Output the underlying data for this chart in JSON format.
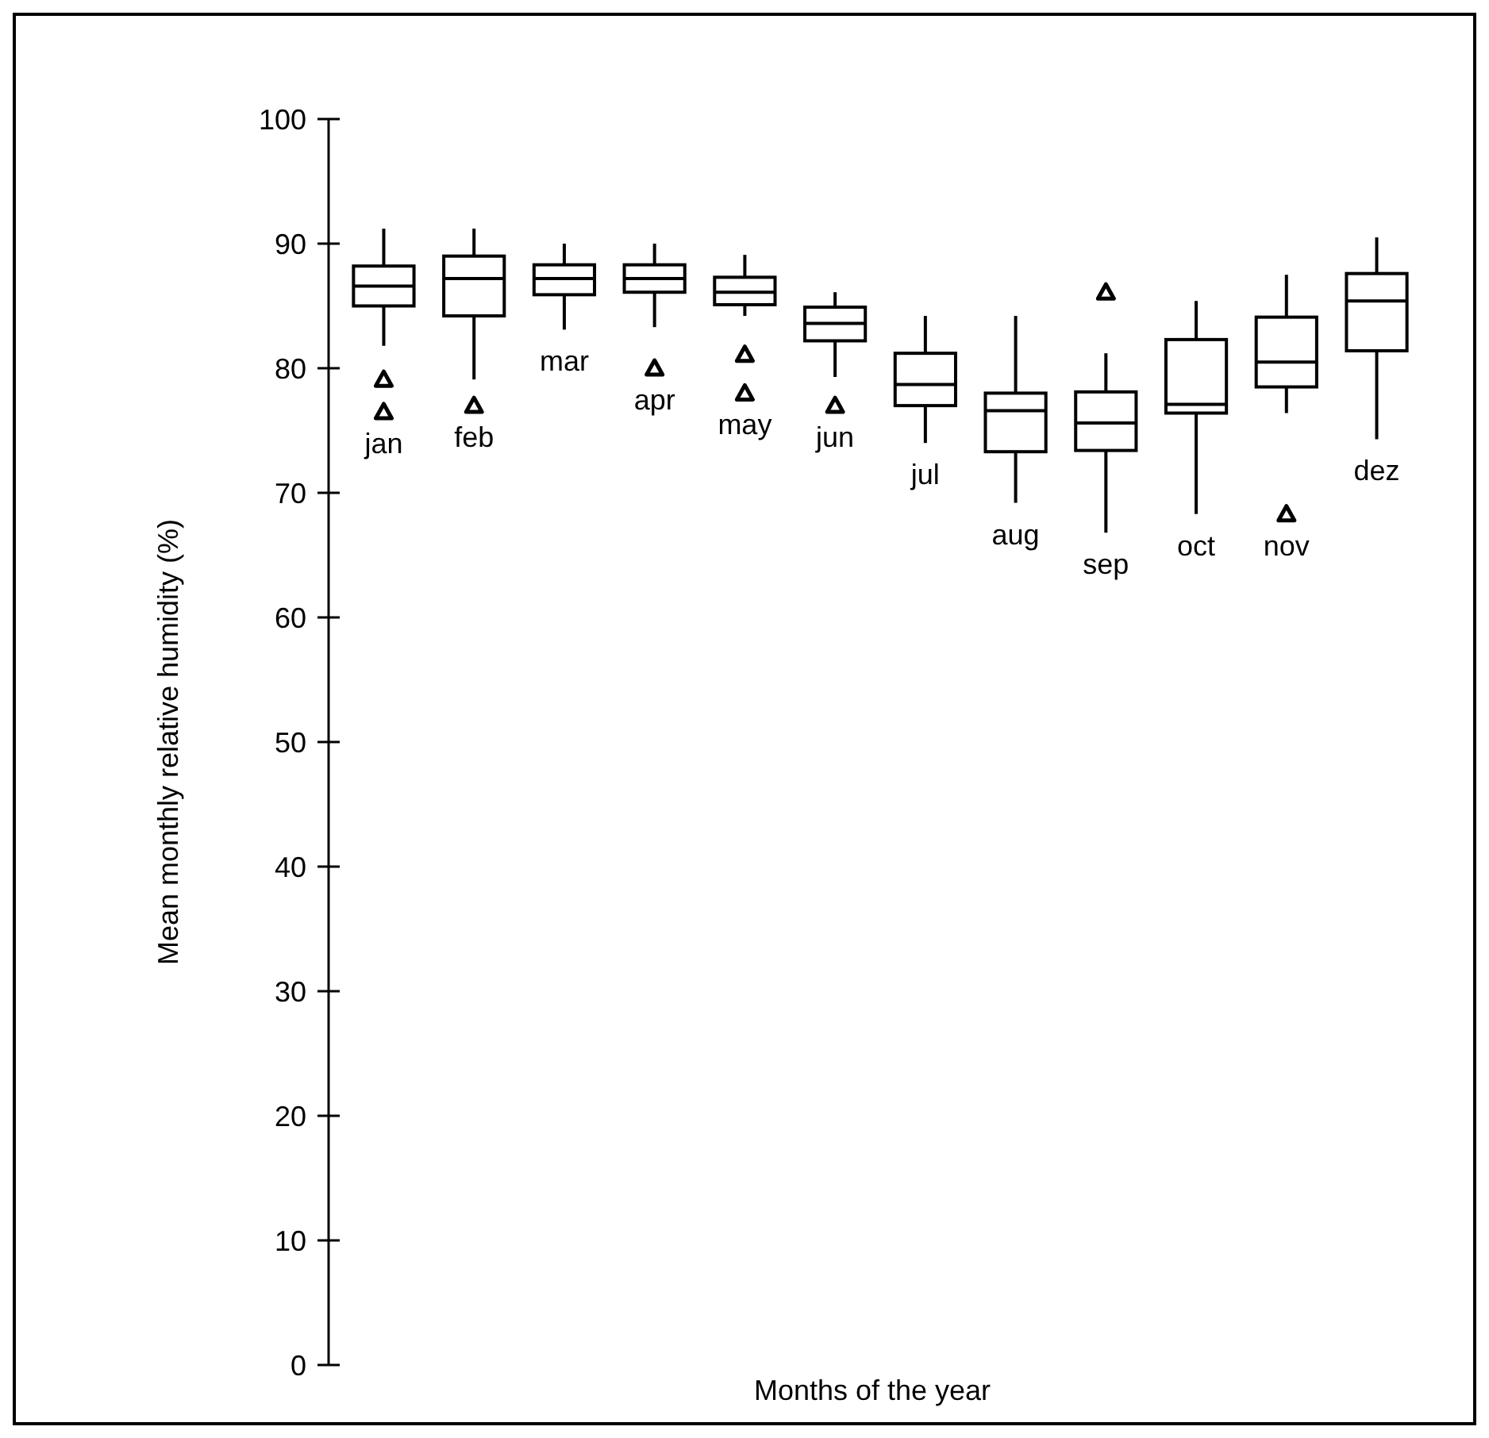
{
  "chart_data": {
    "type": "box",
    "categories": [
      "jan",
      "feb",
      "mar",
      "apr",
      "may",
      "jun",
      "jul",
      "aug",
      "sep",
      "oct",
      "nov",
      "dez"
    ],
    "xlabel": "Months of the year",
    "ylabel": "Mean monthly relative humidity (%)",
    "ylim": [
      0,
      100
    ],
    "yticks": [
      0,
      10,
      20,
      30,
      40,
      50,
      60,
      70,
      80,
      90,
      100
    ],
    "marker": "triangle",
    "color": "#000000",
    "boxes": [
      {
        "low": 81.8,
        "q1": 85.0,
        "median": 86.6,
        "q3": 88.2,
        "high": 91.2,
        "outliers": [
          79.1,
          76.5
        ]
      },
      {
        "low": 79.1,
        "q1": 84.2,
        "median": 87.2,
        "q3": 89.0,
        "high": 91.2,
        "outliers": [
          77.0
        ]
      },
      {
        "low": 83.1,
        "q1": 85.9,
        "median": 87.2,
        "q3": 88.3,
        "high": 90.0
      },
      {
        "low": 83.3,
        "q1": 86.1,
        "median": 87.2,
        "q3": 88.3,
        "high": 90.0,
        "outliers": [
          80.0
        ]
      },
      {
        "low": 84.2,
        "q1": 85.1,
        "median": 86.1,
        "q3": 87.3,
        "high": 89.1,
        "outliers": [
          81.1,
          78.0
        ]
      },
      {
        "low": 79.3,
        "q1": 82.2,
        "median": 83.6,
        "q3": 84.9,
        "high": 86.1,
        "outliers": [
          77.0
        ]
      },
      {
        "low": 74.0,
        "q1": 77.0,
        "median": 78.7,
        "q3": 81.2,
        "high": 84.2
      },
      {
        "low": 69.2,
        "q1": 73.3,
        "median": 76.6,
        "q3": 78.0,
        "high": 84.2
      },
      {
        "low": 66.8,
        "q1": 73.4,
        "median": 75.6,
        "q3": 78.1,
        "high": 81.2,
        "outliers": [
          86.1
        ]
      },
      {
        "low": 68.3,
        "q1": 76.4,
        "median": 77.1,
        "q3": 82.3,
        "high": 85.4
      },
      {
        "low": 76.4,
        "q1": 78.5,
        "median": 80.5,
        "q3": 84.1,
        "high": 87.5,
        "outliers": [
          68.3
        ]
      },
      {
        "low": 74.3,
        "q1": 81.4,
        "median": 85.4,
        "q3": 87.6,
        "high": 90.5
      }
    ]
  }
}
